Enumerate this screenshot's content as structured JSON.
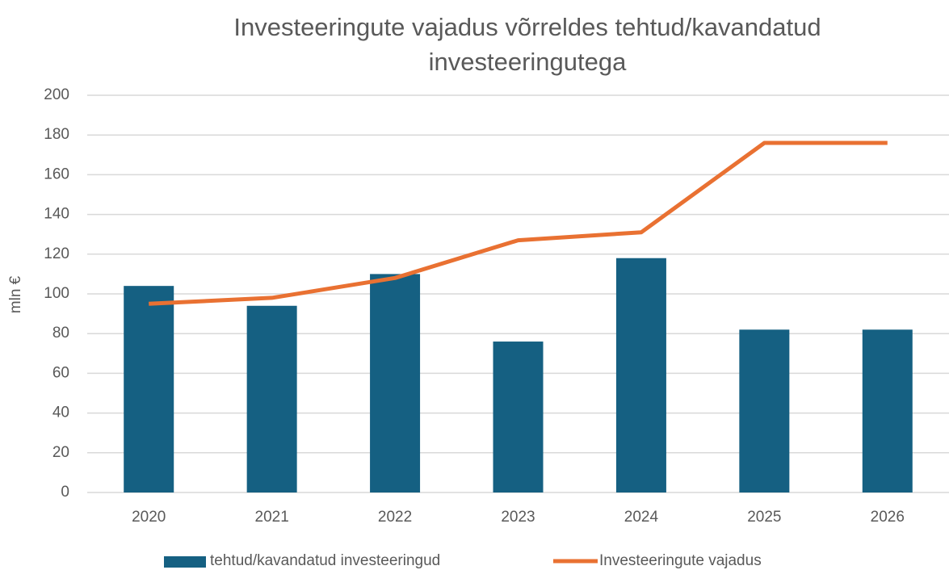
{
  "chart_data": {
    "type": "bar",
    "title": "Investeeringute vajadus võrreldes tehtud/kavandatud investeeringutega",
    "ylabel": "mln €",
    "categories": [
      "2020",
      "2021",
      "2022",
      "2023",
      "2024",
      "2025",
      "2026"
    ],
    "series": [
      {
        "name": "tehtud/kavandatud investeeringud",
        "type": "bar",
        "color": "#156082",
        "values": [
          104,
          94,
          110,
          76,
          118,
          82,
          82
        ]
      },
      {
        "name": "Investeeringute vajadus",
        "type": "line",
        "color": "#e97132",
        "values": [
          95,
          98,
          108,
          127,
          131,
          176,
          176
        ]
      }
    ],
    "ylim": [
      0,
      200
    ],
    "yticks": [
      0,
      20,
      40,
      60,
      80,
      100,
      120,
      140,
      160,
      180,
      200
    ],
    "grid": true,
    "legend": "bottom"
  }
}
